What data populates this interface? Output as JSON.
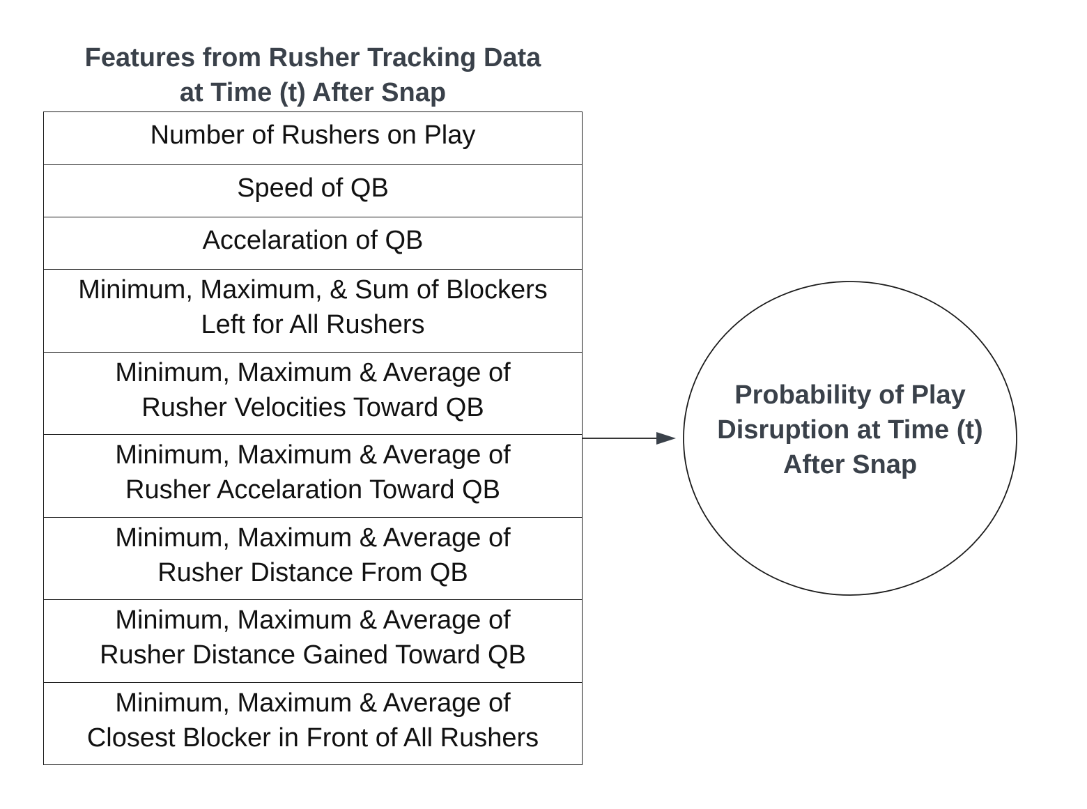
{
  "title": {
    "line1": "Features from Rusher Tracking Data",
    "line2": "at Time (t) After Snap"
  },
  "features": [
    {
      "lines": [
        "Number of Rushers on Play"
      ]
    },
    {
      "lines": [
        "Speed of QB"
      ]
    },
    {
      "lines": [
        "Accelaration of QB"
      ]
    },
    {
      "lines": [
        "Minimum, Maximum, & Sum of Blockers",
        "Left for All Rushers"
      ]
    },
    {
      "lines": [
        "Minimum, Maximum & Average of",
        "Rusher Velocities Toward QB"
      ]
    },
    {
      "lines": [
        "Minimum, Maximum & Average of",
        "Rusher Accelaration Toward QB"
      ]
    },
    {
      "lines": [
        "Minimum, Maximum & Average of",
        "Rusher Distance From QB"
      ]
    },
    {
      "lines": [
        "Minimum, Maximum & Average of",
        "Rusher Distance Gained Toward QB"
      ]
    },
    {
      "lines": [
        "Minimum, Maximum & Average of",
        "Closest Blocker in Front of All Rushers"
      ]
    }
  ],
  "outcome": {
    "lines": [
      "Probability of Play",
      "Disruption at Time (t)",
      "After Snap"
    ]
  },
  "colors": {
    "heading": "#3a414a",
    "text": "#111111",
    "stroke": "#1a1a1a"
  }
}
